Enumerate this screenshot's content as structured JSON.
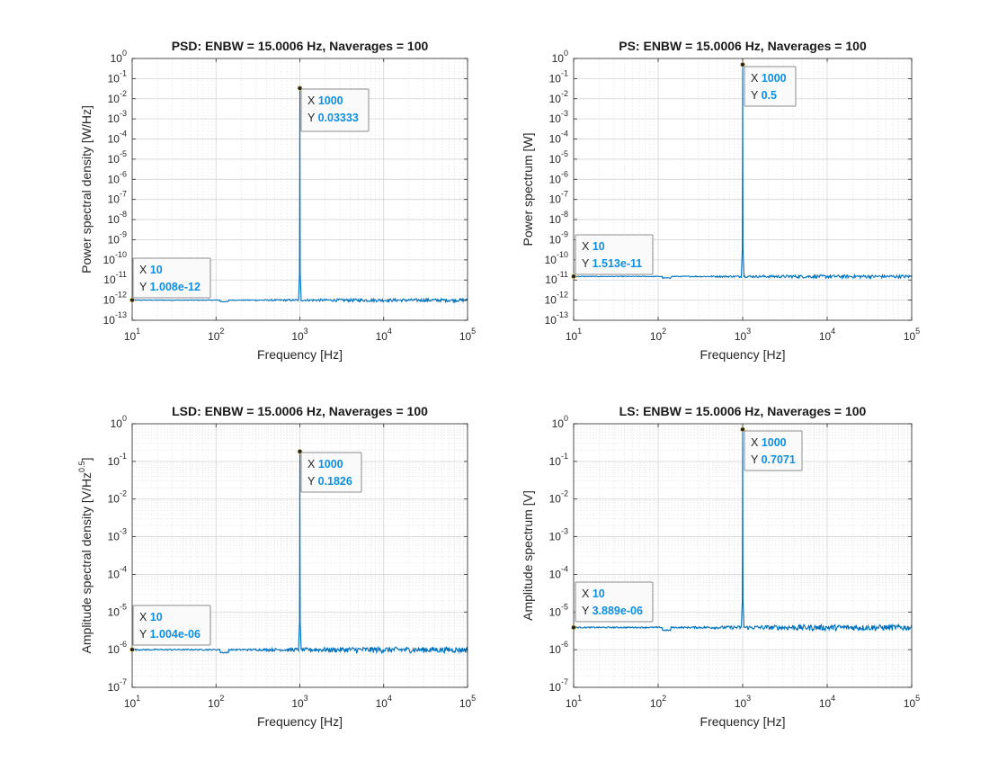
{
  "chart_data": [
    {
      "type": "line",
      "title": "PSD: ENBW = 15.0006 Hz, Naverages = 100",
      "xlabel": "Frequency [Hz]",
      "ylabel": "Power spectral density [W/Hz]",
      "xscale": "log",
      "yscale": "log",
      "xlim": [
        10,
        100000
      ],
      "ylim_exponents": [
        -13,
        0
      ],
      "x_ticks": [
        "10^1",
        "10^2",
        "10^3",
        "10^4",
        "10^5"
      ],
      "y_ticks": [
        "10^-13",
        "10^-12",
        "10^-11",
        "10^-10",
        "10^-9",
        "10^-8",
        "10^-7",
        "10^-6",
        "10^-5",
        "10^-4",
        "10^-3",
        "10^-2",
        "10^-1",
        "10^0"
      ],
      "grid": true,
      "series_color": "#0072bd",
      "noise_floor": 1e-12,
      "peak": {
        "x": 1000,
        "y": 0.03333
      },
      "datatips": [
        {
          "x": "10",
          "y": "1.008e-12",
          "x_value": 10,
          "y_value": 1.008e-12
        },
        {
          "x": "1000",
          "y": "0.03333",
          "x_value": 1000,
          "y_value": 0.03333
        }
      ]
    },
    {
      "type": "line",
      "title": "PS: ENBW = 15.0006 Hz, Naverages = 100",
      "xlabel": "Frequency [Hz]",
      "ylabel": "Power spectrum [W]",
      "xscale": "log",
      "yscale": "log",
      "xlim": [
        10,
        100000
      ],
      "ylim_exponents": [
        -13,
        0
      ],
      "x_ticks": [
        "10^1",
        "10^2",
        "10^3",
        "10^4",
        "10^5"
      ],
      "y_ticks": [
        "10^-13",
        "10^-12",
        "10^-11",
        "10^-10",
        "10^-9",
        "10^-8",
        "10^-7",
        "10^-6",
        "10^-5",
        "10^-4",
        "10^-3",
        "10^-2",
        "10^-1",
        "10^0"
      ],
      "grid": true,
      "series_color": "#0072bd",
      "noise_floor": 1.5e-11,
      "peak": {
        "x": 1000,
        "y": 0.5
      },
      "datatips": [
        {
          "x": "10",
          "y": "1.513e-11",
          "x_value": 10,
          "y_value": 1.513e-11
        },
        {
          "x": "1000",
          "y": "0.5",
          "x_value": 1000,
          "y_value": 0.5
        }
      ]
    },
    {
      "type": "line",
      "title": "LSD: ENBW = 15.0006 Hz, Naverages = 100",
      "xlabel": "Frequency [Hz]",
      "ylabel": "Amplitude spectral density [V/Hz^0.5]",
      "xscale": "log",
      "yscale": "log",
      "xlim": [
        10,
        100000
      ],
      "ylim_exponents": [
        -7,
        0
      ],
      "x_ticks": [
        "10^1",
        "10^2",
        "10^3",
        "10^4",
        "10^5"
      ],
      "y_ticks": [
        "10^-7",
        "10^-6",
        "10^-5",
        "10^-4",
        "10^-3",
        "10^-2",
        "10^-1",
        "10^0"
      ],
      "grid": true,
      "series_color": "#0072bd",
      "noise_floor": 1e-06,
      "peak": {
        "x": 1000,
        "y": 0.1826
      },
      "datatips": [
        {
          "x": "10",
          "y": "1.004e-06",
          "x_value": 10,
          "y_value": 1.004e-06
        },
        {
          "x": "1000",
          "y": "0.1826",
          "x_value": 1000,
          "y_value": 0.1826
        }
      ]
    },
    {
      "type": "line",
      "title": "LS: ENBW = 15.0006 Hz, Naverages = 100",
      "xlabel": "Frequency [Hz]",
      "ylabel": "Amplitude spectrum [V]",
      "xscale": "log",
      "yscale": "log",
      "xlim": [
        10,
        100000
      ],
      "ylim_exponents": [
        -7,
        0
      ],
      "x_ticks": [
        "10^1",
        "10^2",
        "10^3",
        "10^4",
        "10^5"
      ],
      "y_ticks": [
        "10^-7",
        "10^-6",
        "10^-5",
        "10^-4",
        "10^-3",
        "10^-2",
        "10^-1",
        "10^0"
      ],
      "grid": true,
      "series_color": "#0072bd",
      "noise_floor": 3.9e-06,
      "peak": {
        "x": 1000,
        "y": 0.7071
      },
      "datatips": [
        {
          "x": "10",
          "y": "3.889e-06",
          "x_value": 10,
          "y_value": 3.889e-06
        },
        {
          "x": "1000",
          "y": "0.7071",
          "x_value": 1000,
          "y_value": 0.7071
        }
      ]
    }
  ]
}
